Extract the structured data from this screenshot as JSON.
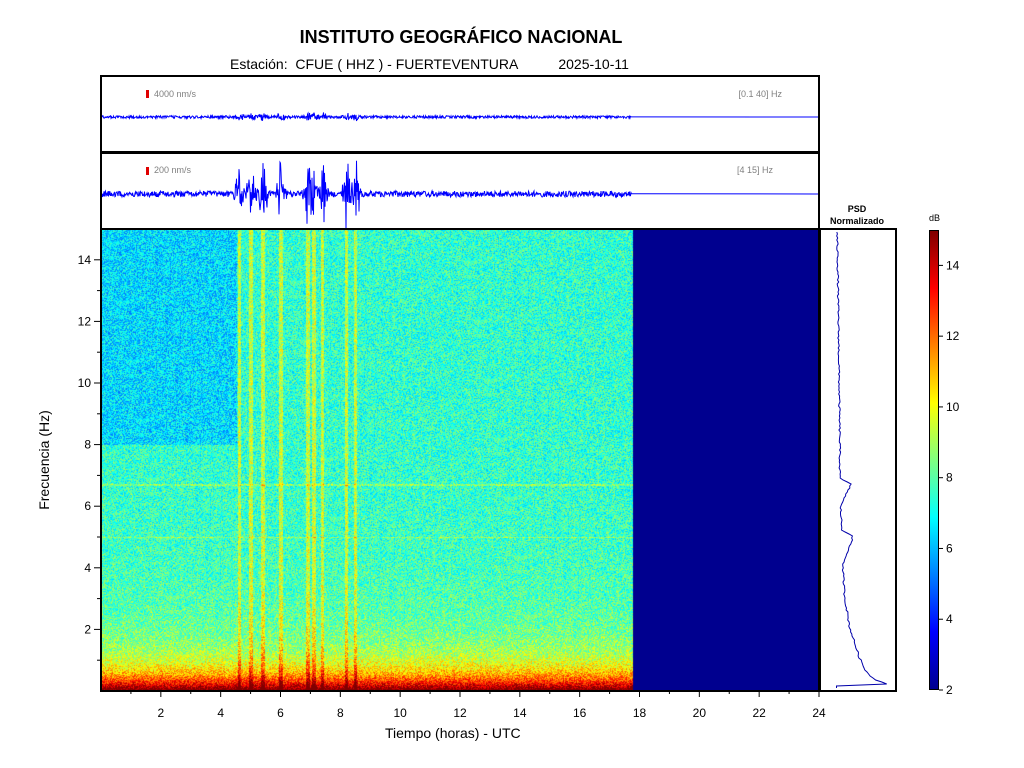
{
  "header": {
    "title": "INSTITUTO GEOGRÁFICO NACIONAL",
    "station_label": "Estación:",
    "station": "CFUE ( HHZ ) - FUERTEVENTURA",
    "date": "2025-10-11"
  },
  "trace_top": {
    "scale": "4000 nm/s",
    "band": "[0.1 40] Hz"
  },
  "trace_bottom": {
    "scale": "200 nm/s",
    "band": "[4 15] Hz"
  },
  "psd": {
    "title_line1": "PSD",
    "title_line2": "Normalizado"
  },
  "colorbar": {
    "unit": "dB",
    "min": 2,
    "max": 15,
    "ticks": [
      "2",
      "4",
      "6",
      "8",
      "10",
      "12",
      "14"
    ],
    "colors": [
      "#00008f",
      "#0000ff",
      "#0080ff",
      "#00ffff",
      "#80ff80",
      "#ffff00",
      "#ff8000",
      "#ff0000",
      "#800000"
    ]
  },
  "chart_data": {
    "type": "heatmap",
    "xlabel": "Tiempo (horas) - UTC",
    "ylabel": "Frecuencia  (Hz)",
    "xlim": [
      0,
      24
    ],
    "ylim": [
      0,
      15
    ],
    "xticks": [
      "2",
      "4",
      "6",
      "8",
      "10",
      "12",
      "14",
      "16",
      "18",
      "20",
      "22",
      "24"
    ],
    "yticks": [
      "2",
      "4",
      "6",
      "8",
      "10",
      "12",
      "14"
    ],
    "data_end_hour": 17.75,
    "noise_bursts_hours": [
      4.6,
      5.0,
      5.4,
      6.0,
      6.9,
      7.1,
      7.4,
      8.2,
      8.5
    ],
    "persistent_lines_hz": [
      5.0,
      6.7
    ],
    "psd_profile": [
      {
        "hz": 0.1,
        "level": 0.95
      },
      {
        "hz": 0.3,
        "level": 0.72
      },
      {
        "hz": 0.6,
        "level": 0.6
      },
      {
        "hz": 1.0,
        "level": 0.52
      },
      {
        "hz": 1.5,
        "level": 0.45
      },
      {
        "hz": 2.0,
        "level": 0.38
      },
      {
        "hz": 3.0,
        "level": 0.31
      },
      {
        "hz": 4.0,
        "level": 0.28
      },
      {
        "hz": 5.0,
        "level": 0.43
      },
      {
        "hz": 5.2,
        "level": 0.27
      },
      {
        "hz": 6.0,
        "level": 0.25
      },
      {
        "hz": 6.7,
        "level": 0.4
      },
      {
        "hz": 6.9,
        "level": 0.24
      },
      {
        "hz": 8.0,
        "level": 0.24
      },
      {
        "hz": 10.0,
        "level": 0.23
      },
      {
        "hz": 12.0,
        "level": 0.22
      },
      {
        "hz": 14.0,
        "level": 0.21
      },
      {
        "hz": 15.0,
        "level": 0.2
      }
    ]
  }
}
